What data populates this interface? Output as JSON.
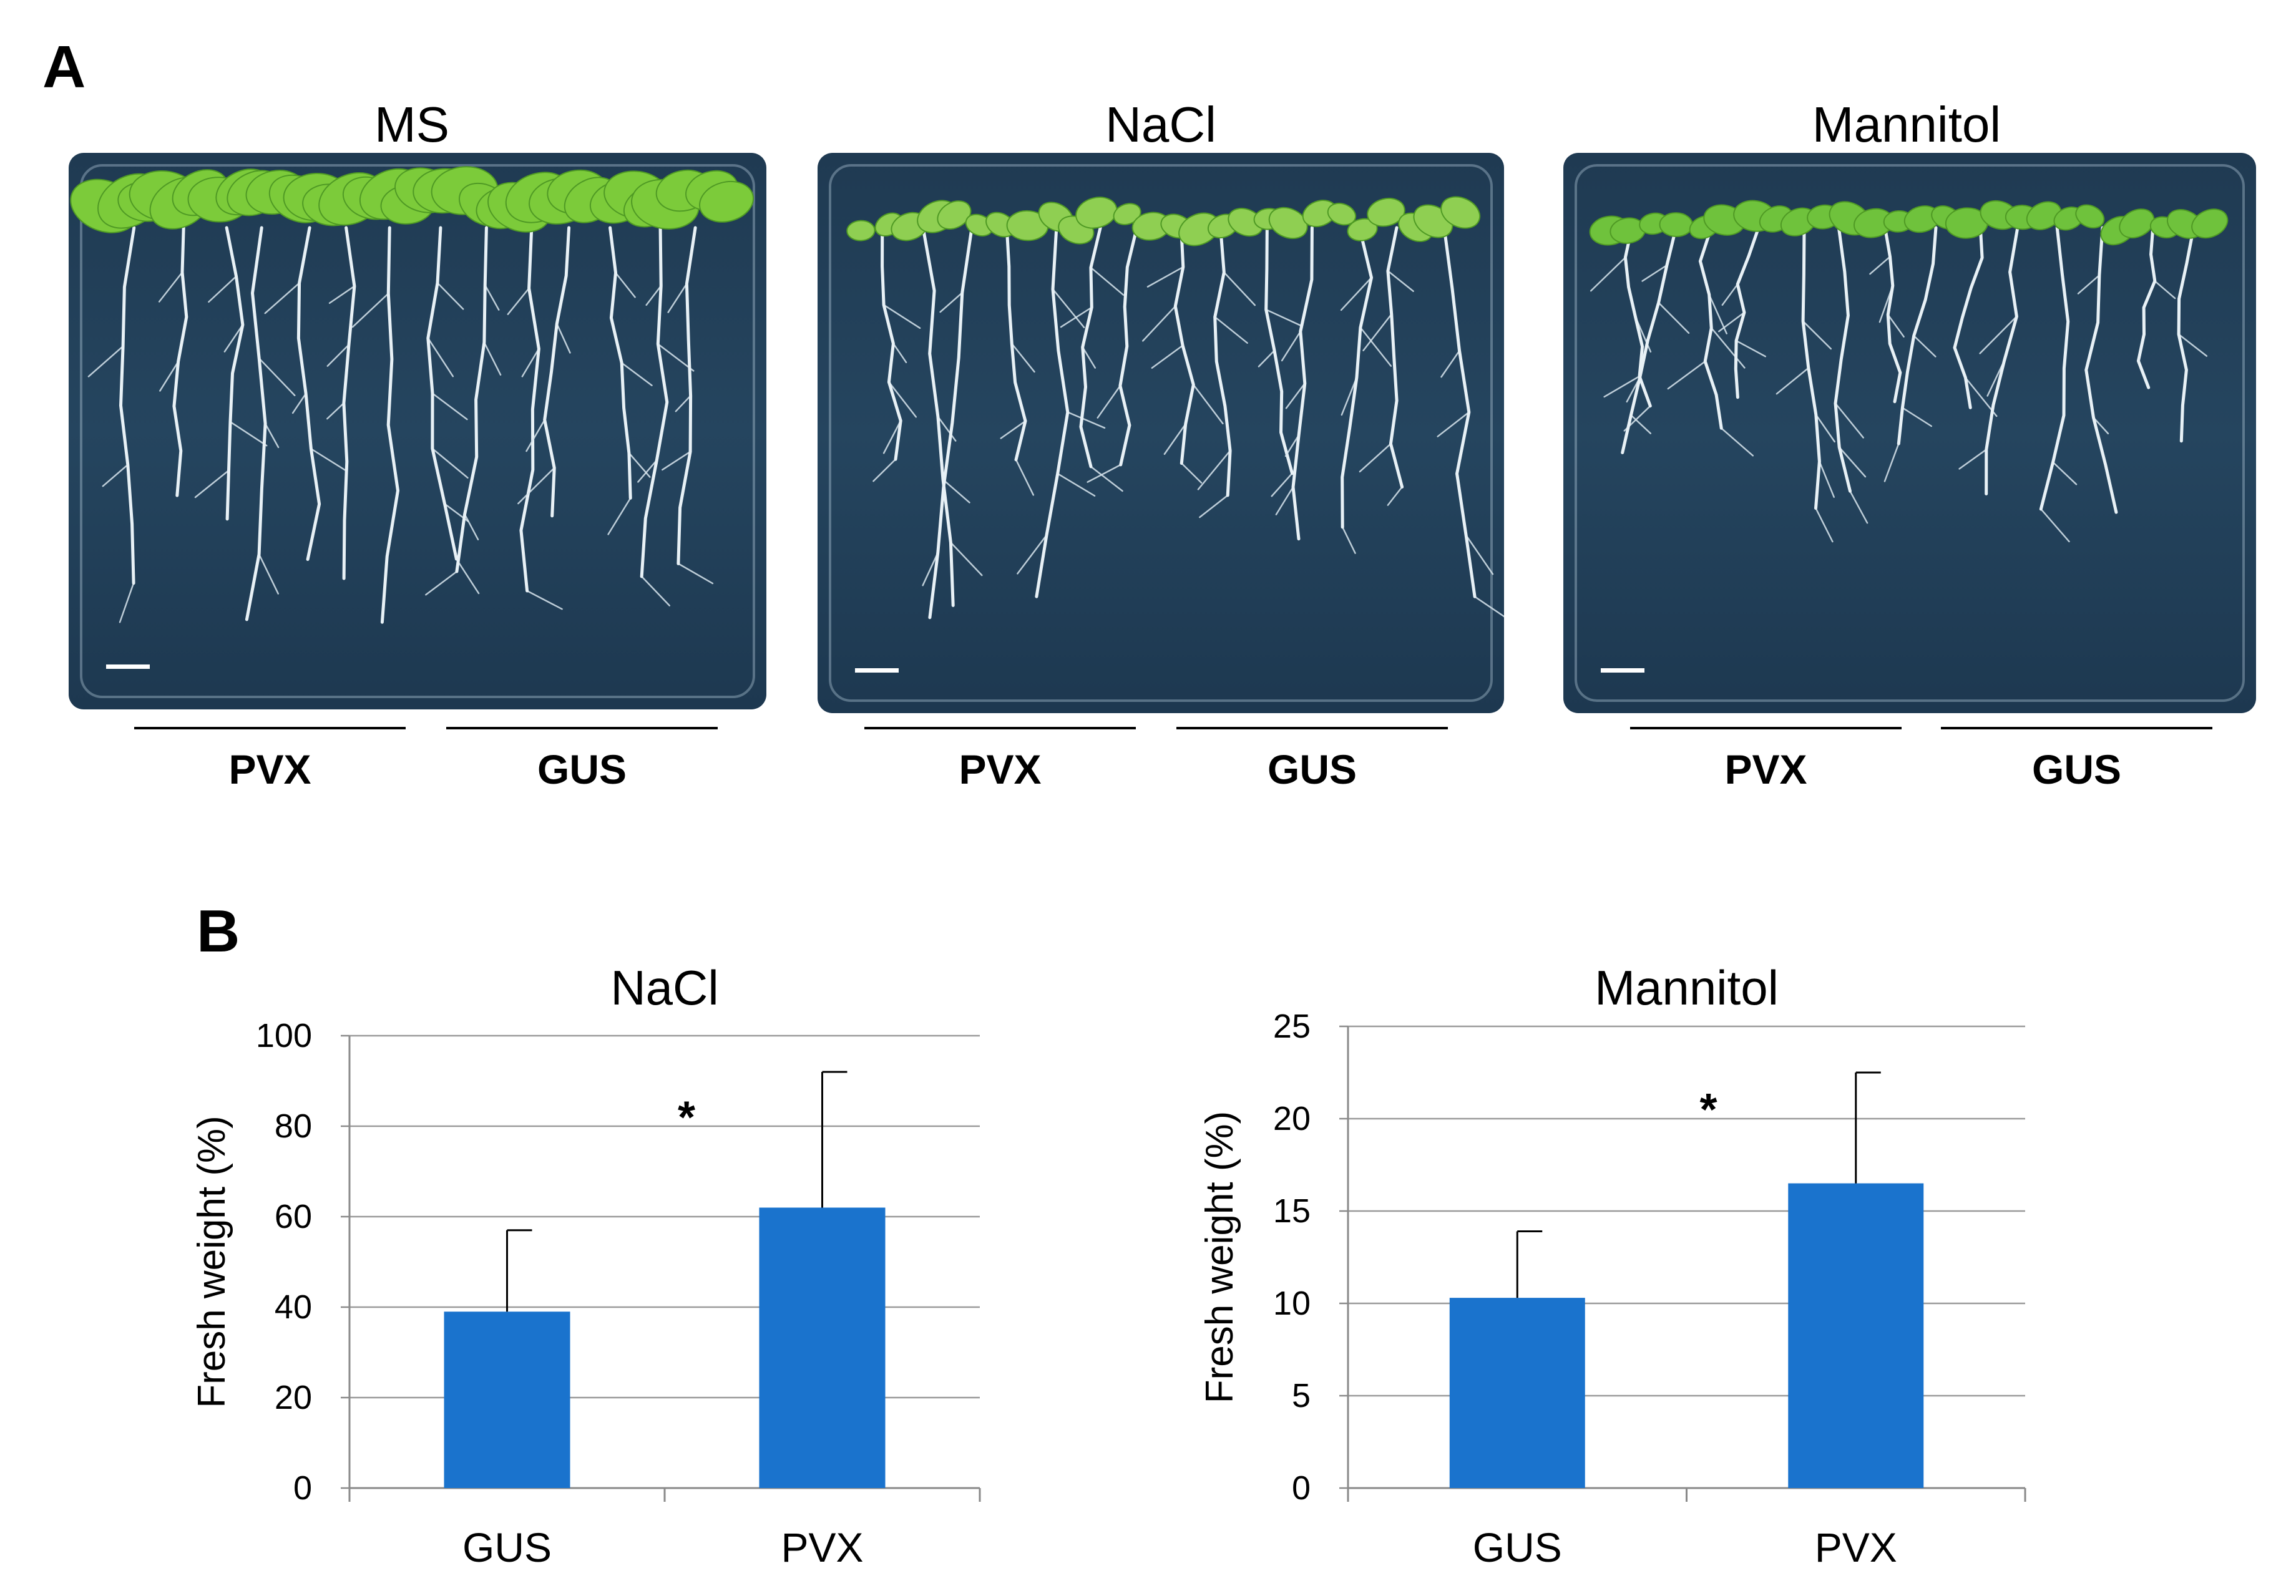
{
  "panel_a": {
    "letter": "A",
    "plates": [
      {
        "title": "MS",
        "labels": [
          "PVX",
          "GUS"
        ],
        "leaf_color": "#7ccb3a",
        "root_length": 0.97
      },
      {
        "title": "NaCl",
        "labels": [
          "PVX",
          "GUS"
        ],
        "leaf_color": "#8fcf52",
        "root_length": 0.85
      },
      {
        "title": "Mannitol",
        "labels": [
          "PVX",
          "GUS"
        ],
        "leaf_color": "#6fc23c",
        "root_length": 0.63
      }
    ]
  },
  "panel_b": {
    "letter": "B"
  },
  "chart_data": [
    {
      "type": "bar",
      "title": "NaCl",
      "ylabel": "Fresh weight (%)",
      "xlabel": "",
      "categories": [
        "GUS",
        "PVX"
      ],
      "values": [
        39,
        62
      ],
      "errors": [
        18,
        30
      ],
      "ylim": [
        0,
        100
      ],
      "yticks": [
        "0",
        "20",
        "40",
        "60",
        "80",
        "100"
      ],
      "grid": true,
      "annotation": "*",
      "bar_color": "#1a73cd"
    },
    {
      "type": "bar",
      "title": "Mannitol",
      "ylabel": "Fresh weight (%)",
      "xlabel": "",
      "categories": [
        "GUS",
        "PVX"
      ],
      "values": [
        10.3,
        16.5
      ],
      "errors": [
        3.6,
        6.0
      ],
      "ylim": [
        0,
        25
      ],
      "yticks": [
        "0",
        "5",
        "10",
        "15",
        "20",
        "25"
      ],
      "grid": true,
      "annotation": "*",
      "bar_color": "#1a73cd"
    }
  ]
}
